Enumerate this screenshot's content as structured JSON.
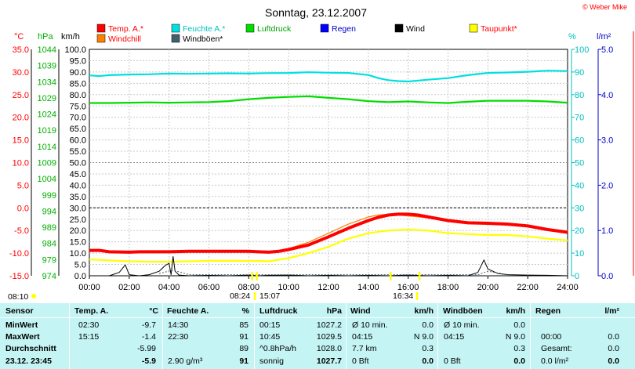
{
  "chart_data": {
    "type": "line",
    "title": "Sonntag, 23.12.2007",
    "copyright": "© Weber Mike",
    "x_ticks": [
      "00:00",
      "02:00",
      "04:00",
      "06:00",
      "08:00",
      "10:00",
      "12:00",
      "14:00",
      "16:00",
      "18:00",
      "20:00",
      "22:00",
      "24:00"
    ],
    "axes": {
      "temp": {
        "label": "°C",
        "ticks": [
          "35.0",
          "30.0",
          "25.0",
          "20.0",
          "15.0",
          "10.0",
          "5.0",
          "0.0",
          "-5.0",
          "-10.0",
          "-15.0"
        ],
        "range": [
          -15,
          35
        ]
      },
      "pressure": {
        "label": "hPa",
        "ticks": [
          "1044",
          "1039",
          "1034",
          "1029",
          "1024",
          "1019",
          "1014",
          "1009",
          "1004",
          "999",
          "994",
          "989",
          "984",
          "979",
          "974"
        ],
        "range": [
          974,
          1044
        ]
      },
      "wind": {
        "label": "km/h",
        "ticks": [
          "100.0",
          "95.0",
          "90.0",
          "85.0",
          "80.0",
          "75.0",
          "70.0",
          "65.0",
          "60.0",
          "55.0",
          "50.0",
          "45.0",
          "40.0",
          "35.0",
          "30.0",
          "25.0",
          "20.0",
          "15.0",
          "10.0",
          "5.0",
          "0.0"
        ],
        "range": [
          0,
          100
        ]
      },
      "humidity": {
        "label": "%",
        "ticks": [
          "100",
          "90",
          "80",
          "70",
          "60",
          "50",
          "40",
          "30",
          "20",
          "10",
          "0"
        ],
        "range": [
          0,
          100
        ]
      },
      "rain": {
        "label": "l/m²",
        "ticks": [
          "5.0",
          "4.0",
          "3.0",
          "2.0",
          "1.0",
          "0.0"
        ],
        "range": [
          0,
          5
        ]
      }
    },
    "legend": [
      {
        "name": "Temp. A.*",
        "color": "#ff0000"
      },
      {
        "name": "Feuchte A.*",
        "color": "#00e0e0"
      },
      {
        "name": "Luftdruck",
        "color": "#00dd00"
      },
      {
        "name": "Regen",
        "color": "#0000ff"
      },
      {
        "name": "Wind",
        "color": "#000000"
      },
      {
        "name": "Taupunkt*",
        "color": "#ffff00"
      },
      {
        "name": "Windchill",
        "color": "#ff8000"
      },
      {
        "name": "Windböen*",
        "color": "#406070"
      }
    ],
    "series": [
      {
        "name": "Temp. A.*",
        "axis": "temp",
        "color": "#ff0000",
        "x": [
          0,
          0.5,
          1,
          2,
          2.5,
          3,
          4,
          5,
          6,
          7,
          8,
          8.5,
          9,
          9.5,
          10,
          11,
          12,
          13,
          14,
          14.5,
          15,
          15.5,
          16,
          16.5,
          17,
          18,
          19,
          20,
          21,
          22,
          23,
          24
        ],
        "y": [
          -9.4,
          -9.4,
          -9.7,
          -9.8,
          -9.7,
          -9.7,
          -9.7,
          -9.6,
          -9.6,
          -9.6,
          -9.6,
          -9.7,
          -9.8,
          -9.6,
          -9.2,
          -8.2,
          -6.4,
          -4.5,
          -2.8,
          -2.1,
          -1.6,
          -1.4,
          -1.4,
          -1.6,
          -2.0,
          -2.8,
          -3.3,
          -3.4,
          -3.6,
          -4.0,
          -4.8,
          -5.4
        ]
      },
      {
        "name": "Windchill",
        "axis": "temp",
        "color": "#ff8000",
        "x": [
          0,
          0.5,
          1,
          2,
          3,
          4,
          5,
          6,
          7,
          8,
          8.5,
          9,
          9.5,
          10,
          11,
          12,
          13,
          14,
          14.5,
          15,
          15.5,
          16,
          17,
          18,
          19,
          20,
          21,
          22,
          23,
          24
        ],
        "y": [
          -9.4,
          -9.4,
          -9.7,
          -9.8,
          -9.7,
          -9.7,
          -9.6,
          -9.6,
          -9.6,
          -9.6,
          -9.7,
          -9.8,
          -9.6,
          -9.0,
          -7.6,
          -5.6,
          -3.6,
          -2.0,
          -1.6,
          -1.4,
          -1.6,
          -1.8,
          -2.2,
          -2.8,
          -3.2,
          -3.4,
          -3.6,
          -4.0,
          -4.8,
          -5.4
        ]
      },
      {
        "name": "Taupunkt*",
        "axis": "temp",
        "color": "#ffff00",
        "x": [
          0,
          1,
          2,
          3,
          4,
          5,
          6,
          7,
          8,
          9,
          10,
          11,
          12,
          13,
          14,
          15,
          16,
          17,
          18,
          19,
          20,
          21,
          22,
          23,
          24
        ],
        "y": [
          -11.4,
          -11.6,
          -11.8,
          -11.9,
          -11.9,
          -11.8,
          -11.7,
          -11.7,
          -11.7,
          -11.8,
          -11.1,
          -10.0,
          -8.6,
          -6.8,
          -5.6,
          -5.0,
          -4.8,
          -5.0,
          -5.6,
          -5.8,
          -6.0,
          -6.0,
          -6.3,
          -6.8,
          -7.2
        ]
      },
      {
        "name": "Feuchte A.*",
        "axis": "humidity",
        "color": "#00e0e0",
        "x": [
          0,
          0.5,
          1,
          2,
          3,
          4,
          5,
          6,
          7,
          8,
          9,
          10,
          11,
          12,
          13,
          14,
          14.5,
          15,
          15.5,
          16,
          16.5,
          17,
          18,
          19,
          20,
          21,
          22,
          23,
          24
        ],
        "y": [
          88.5,
          88.2,
          88.6,
          88.9,
          89.0,
          89.3,
          89.2,
          89.3,
          89.4,
          89.3,
          89.5,
          89.6,
          89.9,
          89.7,
          89.6,
          88.7,
          87.3,
          86.4,
          86.0,
          85.8,
          86.2,
          86.6,
          87.3,
          88.6,
          89.6,
          89.8,
          90.1,
          90.6,
          90.4
        ]
      },
      {
        "name": "Luftdruck",
        "axis": "pressure",
        "color": "#00dd00",
        "x": [
          0,
          1,
          2,
          3,
          4,
          5,
          6,
          7,
          8,
          9,
          10,
          11,
          12,
          13,
          14,
          15,
          16,
          17,
          18,
          19,
          20,
          21,
          22,
          23,
          24
        ],
        "y": [
          1027.4,
          1027.4,
          1027.5,
          1027.6,
          1027.5,
          1027.6,
          1027.7,
          1028.0,
          1028.6,
          1029.0,
          1029.3,
          1029.5,
          1029.0,
          1028.6,
          1028.0,
          1027.7,
          1027.9,
          1027.6,
          1027.4,
          1027.8,
          1028.1,
          1028.1,
          1028.1,
          1027.9,
          1027.5
        ]
      },
      {
        "name": "Wind",
        "axis": "wind",
        "color": "#000000",
        "x": [
          0,
          0.5,
          1,
          1.5,
          1.8,
          2,
          2.5,
          3,
          3.5,
          3.8,
          4,
          4.1,
          4.2,
          4.3,
          4.5,
          5,
          6,
          7,
          8,
          8.5,
          9,
          10,
          11,
          12,
          13,
          14,
          15,
          16,
          17,
          18,
          19,
          19.5,
          19.8,
          20,
          20.5,
          21,
          22,
          23,
          24
        ],
        "y": [
          0,
          0,
          0,
          1.5,
          4.8,
          0.5,
          0,
          0.5,
          2,
          4.5,
          5.5,
          0.5,
          8.5,
          2,
          0.3,
          0,
          0.2,
          0,
          0.3,
          0,
          0.2,
          0.3,
          0,
          0.2,
          0,
          0.2,
          0,
          0.3,
          0,
          0.2,
          0,
          1.5,
          7,
          3,
          1,
          0.5,
          0.3,
          0.2,
          0
        ]
      }
    ],
    "markers": [
      {
        "label": "08:10",
        "x_hours": 8.167
      },
      {
        "label": "08:24",
        "x_hours": 8.4
      },
      {
        "label": "15:07",
        "x_hours": 15.117
      },
      {
        "label": "16:34",
        "x_hours": 16.567
      }
    ]
  },
  "table": {
    "headers": {
      "sensor": "Sensor",
      "temp": "Temp. A.",
      "temp_unit": "°C",
      "hum": "Feuchte A.",
      "hum_unit": "%",
      "press": "Luftdruck",
      "press_unit": "hPa",
      "wind": "Wind",
      "wind_unit": "km/h",
      "gust": "Windböen",
      "gust_unit": "km/h",
      "rain": "Regen",
      "rain_unit": "l/m²"
    },
    "rows": [
      {
        "label": "MinWert",
        "temp_time": "02:30",
        "temp_val": "-9.7",
        "hum_time": "14:30",
        "hum_val": "85",
        "press_time": "00:15",
        "press_val": "1027.2",
        "wind_time": "Ø 10 min.",
        "wind_val": "0.0",
        "gust_time": "Ø 10 min.",
        "gust_val": "0.0",
        "rain_time": "",
        "rain_val": ""
      },
      {
        "label": "MaxWert",
        "temp_time": "15:15",
        "temp_val": "-1.4",
        "hum_time": "22:30",
        "hum_val": "91",
        "press_time": "10:45",
        "press_val": "1029.5",
        "wind_time": "04:15",
        "wind_val": "N 9.0",
        "gust_time": "04:15",
        "gust_val": "N 9.0",
        "rain_time": "00:00",
        "rain_val": "0.0"
      },
      {
        "label": "Durchschnitt",
        "temp_time": "",
        "temp_val": "-5.99",
        "hum_time": "",
        "hum_val": "89",
        "press_time": "^0.8hPa/h",
        "press_val": "1028.0",
        "wind_time": "7.7 km",
        "wind_val": "0.3",
        "gust_time": "",
        "gust_val": "0.3",
        "rain_time": "Gesamt:",
        "rain_val": "0.0"
      },
      {
        "label": "23.12. 23:45",
        "temp_time": "",
        "temp_val": "-5.9",
        "hum_time": "2.90 g/m³",
        "hum_val": "91",
        "press_time": "sonnig",
        "press_val": "1027.7",
        "wind_time": "0 Bft",
        "wind_val": "0.0",
        "gust_time": "0 Bft",
        "gust_val": "0.0",
        "rain_time": "0.0 l/m²",
        "rain_val": "0.0"
      }
    ]
  }
}
